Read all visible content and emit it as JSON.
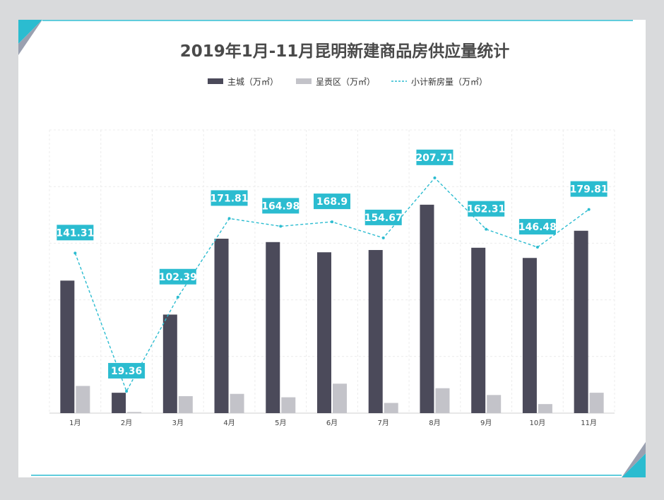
{
  "chart_data": {
    "type": "bar",
    "title": "2019年1月-11月昆明新建商品房供应量统计",
    "categories": [
      "1月",
      "2月",
      "3月",
      "4月",
      "5月",
      "6月",
      "7月",
      "8月",
      "9月",
      "10月",
      "11月"
    ],
    "series": [
      {
        "name": "主城（万㎡）",
        "type": "bar",
        "color": "#4b4a5a",
        "values": [
          117,
          18,
          87,
          154,
          151,
          142,
          144,
          184,
          146,
          137,
          161
        ]
      },
      {
        "name": "呈贡区（万㎡）",
        "type": "bar",
        "color": "#c3c3c9",
        "values": [
          24,
          1,
          15,
          17,
          14,
          26,
          9,
          22,
          16,
          8,
          18
        ]
      },
      {
        "name": "小计新房量（万㎡）",
        "type": "line",
        "style": "dashed",
        "color": "#2bbcd0",
        "values": [
          141.31,
          19.36,
          102.39,
          171.81,
          164.98,
          168.9,
          154.67,
          207.71,
          162.31,
          146.48,
          179.81
        ],
        "data_labels": [
          "141.31",
          "19.36",
          "102.39",
          "171.81",
          "164.98",
          "168.9",
          "154.67",
          "207.71",
          "162.31",
          "146.48",
          "179.81"
        ]
      }
    ],
    "ylim": [
      0,
      250
    ],
    "grid": true,
    "legend_position": "top"
  }
}
